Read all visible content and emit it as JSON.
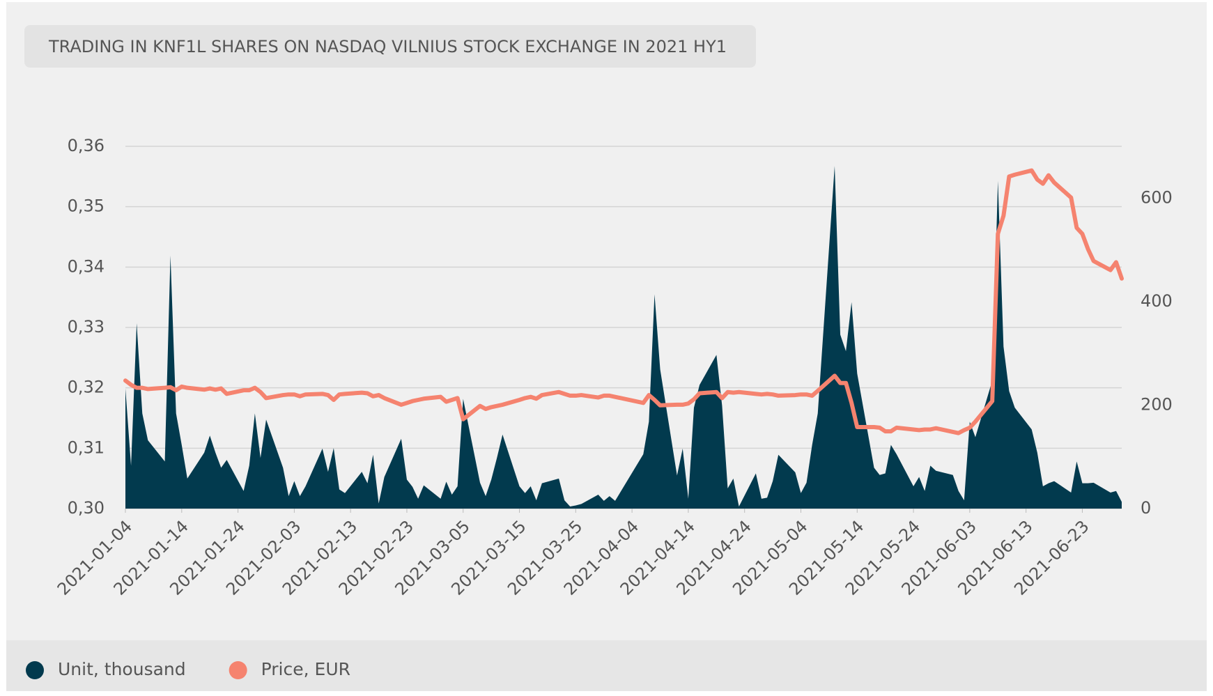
{
  "chart_data": {
    "type": "area-line",
    "title": "TRADING IN KNF1L SHARES ON NASDAQ VILNIUS STOCK EXCHANGE IN 2021 HY1",
    "x": [
      "2021-01-04",
      "2021-01-05",
      "2021-01-06",
      "2021-01-07",
      "2021-01-08",
      "2021-01-11",
      "2021-01-12",
      "2021-01-13",
      "2021-01-14",
      "2021-01-15",
      "2021-01-18",
      "2021-01-19",
      "2021-01-20",
      "2021-01-21",
      "2021-01-22",
      "2021-01-25",
      "2021-01-26",
      "2021-01-27",
      "2021-01-28",
      "2021-01-29",
      "2021-02-01",
      "2021-02-02",
      "2021-02-03",
      "2021-02-04",
      "2021-02-05",
      "2021-02-08",
      "2021-02-09",
      "2021-02-10",
      "2021-02-11",
      "2021-02-12",
      "2021-02-15",
      "2021-02-16",
      "2021-02-17",
      "2021-02-18",
      "2021-02-19",
      "2021-02-22",
      "2021-02-23",
      "2021-02-24",
      "2021-02-25",
      "2021-02-26",
      "2021-03-01",
      "2021-03-02",
      "2021-03-03",
      "2021-03-04",
      "2021-03-05",
      "2021-03-08",
      "2021-03-09",
      "2021-03-10",
      "2021-03-11",
      "2021-03-12",
      "2021-03-15",
      "2021-03-16",
      "2021-03-17",
      "2021-03-18",
      "2021-03-19",
      "2021-03-22",
      "2021-03-23",
      "2021-03-24",
      "2021-03-25",
      "2021-03-26",
      "2021-03-29",
      "2021-03-30",
      "2021-03-31",
      "2021-04-01",
      "2021-04-06",
      "2021-04-07",
      "2021-04-08",
      "2021-04-09",
      "2021-04-12",
      "2021-04-13",
      "2021-04-14",
      "2021-04-15",
      "2021-04-16",
      "2021-04-19",
      "2021-04-20",
      "2021-04-21",
      "2021-04-22",
      "2021-04-23",
      "2021-04-26",
      "2021-04-27",
      "2021-04-28",
      "2021-04-29",
      "2021-04-30",
      "2021-05-03",
      "2021-05-04",
      "2021-05-05",
      "2021-05-06",
      "2021-05-07",
      "2021-05-10",
      "2021-05-11",
      "2021-05-12",
      "2021-05-13",
      "2021-05-14",
      "2021-05-17",
      "2021-05-18",
      "2021-05-19",
      "2021-05-20",
      "2021-05-21",
      "2021-05-24",
      "2021-05-25",
      "2021-05-26",
      "2021-05-27",
      "2021-05-28",
      "2021-05-31",
      "2021-06-01",
      "2021-06-02",
      "2021-06-03",
      "2021-06-04",
      "2021-06-07",
      "2021-06-08",
      "2021-06-09",
      "2021-06-10",
      "2021-06-11",
      "2021-06-14",
      "2021-06-15",
      "2021-06-16",
      "2021-06-17",
      "2021-06-18",
      "2021-06-21",
      "2021-06-22",
      "2021-06-23",
      "2021-06-24",
      "2021-06-25",
      "2021-06-28",
      "2021-06-29",
      "2021-06-30"
    ],
    "series": [
      {
        "name": "Unit, thousand",
        "color": "#023a4e",
        "axis": "y2",
        "kind": "area",
        "values": [
          232,
          83,
          358,
          184,
          132,
          91,
          489,
          184,
          123,
          58,
          108,
          141,
          108,
          79,
          94,
          34,
          83,
          184,
          98,
          172,
          79,
          24,
          53,
          24,
          43,
          116,
          71,
          117,
          37,
          30,
          71,
          49,
          104,
          10,
          61,
          135,
          56,
          42,
          19,
          45,
          19,
          52,
          27,
          43,
          212,
          50,
          24,
          56,
          98,
          143,
          43,
          30,
          43,
          16,
          49,
          58,
          16,
          4,
          6,
          9,
          27,
          15,
          24,
          15,
          105,
          168,
          414,
          269,
          64,
          116,
          19,
          195,
          239,
          297,
          199,
          39,
          58,
          4,
          68,
          19,
          21,
          53,
          104,
          70,
          30,
          50,
          123,
          184,
          662,
          336,
          304,
          399,
          261,
          79,
          65,
          68,
          123,
          105,
          43,
          61,
          34,
          83,
          73,
          65,
          34,
          16,
          168,
          138,
          247,
          633,
          313,
          227,
          195,
          153,
          108,
          43,
          49,
          53,
          31,
          91,
          49,
          49,
          50,
          31,
          34,
          13
        ]
      },
      {
        "name": "Price, EUR",
        "color": "#f5836f",
        "axis": "y",
        "kind": "line",
        "values": [
          0.3212,
          0.3205,
          0.32,
          0.32,
          0.3198,
          0.32,
          0.3201,
          0.3196,
          0.3202,
          0.32,
          0.3197,
          0.3199,
          0.3197,
          0.3199,
          0.319,
          0.3196,
          0.3196,
          0.32,
          0.3193,
          0.3183,
          0.3188,
          0.3189,
          0.3189,
          0.3186,
          0.3189,
          0.319,
          0.3188,
          0.318,
          0.3189,
          0.319,
          0.3192,
          0.3191,
          0.3186,
          0.3188,
          0.3183,
          0.3172,
          0.3175,
          0.3178,
          0.318,
          0.3182,
          0.3185,
          0.3177,
          0.318,
          0.3183,
          0.3148,
          0.317,
          0.3165,
          0.3168,
          0.317,
          0.3172,
          0.318,
          0.3183,
          0.3185,
          0.3182,
          0.3188,
          0.3193,
          0.319,
          0.3187,
          0.3187,
          0.3188,
          0.3184,
          0.3187,
          0.3187,
          0.3185,
          0.3175,
          0.3188,
          0.318,
          0.3171,
          0.3172,
          0.3172,
          0.3174,
          0.3181,
          0.3191,
          0.3193,
          0.3183,
          0.3193,
          0.3192,
          0.3193,
          0.319,
          0.3189,
          0.319,
          0.3189,
          0.3187,
          0.3188,
          0.3189,
          0.3189,
          0.3187,
          0.3195,
          0.322,
          0.3208,
          0.3208,
          0.3175,
          0.3135,
          0.3135,
          0.3134,
          0.3128,
          0.3128,
          0.3134,
          0.3131,
          0.313,
          0.3131,
          0.3131,
          0.3133,
          0.3127,
          0.3125,
          0.313,
          0.3134,
          0.3144,
          0.3178,
          0.3455,
          0.3485,
          0.355,
          0.3553,
          0.356,
          0.3545,
          0.3538,
          0.3552,
          0.354,
          0.3515,
          0.3465,
          0.3455,
          0.343,
          0.341,
          0.3395,
          0.3408,
          0.3381
        ]
      }
    ],
    "xlim": [
      "2021-01-04",
      "2021-06-30"
    ],
    "xticks": [
      "2021-01-04",
      "2021-01-14",
      "2021-01-24",
      "2021-02-03",
      "2021-02-13",
      "2021-02-23",
      "2021-03-05",
      "2021-03-15",
      "2021-03-25",
      "2021-04-04",
      "2021-04-14",
      "2021-04-24",
      "2021-05-04",
      "2021-05-14",
      "2021-05-24",
      "2021-06-03",
      "2021-06-13",
      "2021-06-23"
    ],
    "ylim": [
      0.3,
      0.36
    ],
    "yticks": [
      {
        "value": 0.3,
        "label": "0,30"
      },
      {
        "value": 0.31,
        "label": "0,31"
      },
      {
        "value": 0.32,
        "label": "0,32"
      },
      {
        "value": 0.33,
        "label": "0,33"
      },
      {
        "value": 0.34,
        "label": "0,34"
      },
      {
        "value": 0.35,
        "label": "0,35"
      },
      {
        "value": 0.36,
        "label": "0,36"
      }
    ],
    "y2lim": [
      0,
      700
    ],
    "y2ticks": [
      0,
      200,
      400,
      600
    ],
    "grid": true,
    "legend": "bottom"
  }
}
